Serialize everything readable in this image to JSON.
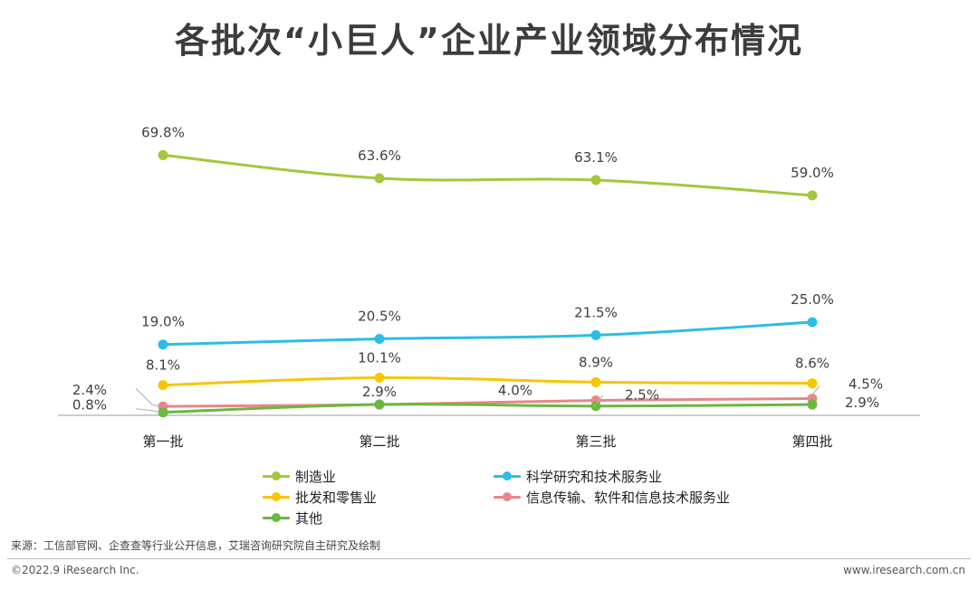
{
  "title": "各批次“小巨人”企业产业领域分布情况",
  "chart_data": {
    "type": "line",
    "categories": [
      "第一批",
      "第二批",
      "第三批",
      "第四批"
    ],
    "series": [
      {
        "name": "制造业",
        "color": "#a3c83a",
        "values": [
          69.8,
          63.6,
          63.1,
          59.0
        ],
        "labels": [
          "69.8%",
          "63.6%",
          "63.1%",
          "59.0%"
        ]
      },
      {
        "name": "科学研究和技术服务业",
        "color": "#2bbde6",
        "values": [
          19.0,
          20.5,
          21.5,
          25.0
        ],
        "labels": [
          "19.0%",
          "20.5%",
          "21.5%",
          "25.0%"
        ]
      },
      {
        "name": "批发和零售业",
        "color": "#f6c600",
        "values": [
          8.1,
          10.1,
          8.9,
          8.6
        ],
        "labels": [
          "8.1%",
          "10.1%",
          "8.9%",
          "8.6%"
        ]
      },
      {
        "name": "信息传输、软件和信息技术服务业",
        "color": "#e8868a",
        "values": [
          2.4,
          2.9,
          4.0,
          4.5
        ],
        "labels": [
          "2.4%",
          "2.9%",
          "4.0%",
          "4.5%"
        ]
      },
      {
        "name": "其他",
        "color": "#6ab83e",
        "values": [
          0.8,
          2.9,
          2.5,
          2.9
        ],
        "labels": [
          "0.8%",
          "",
          "2.5%",
          "2.9%"
        ]
      }
    ],
    "ylim": [
      0,
      75
    ],
    "legend_position": "bottom"
  },
  "legend_order": [
    0,
    1,
    2,
    3,
    4
  ],
  "source": "来源：工信部官网、企查查等行业公开信息，艾瑞咨询研究院自主研究及绘制",
  "copyright": "©2022.9 iResearch Inc.",
  "website": "www.iresearch.com.cn"
}
